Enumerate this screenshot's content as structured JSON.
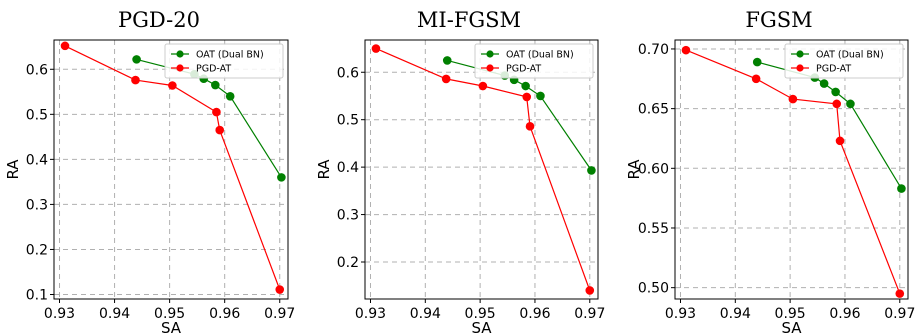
{
  "chart_data": [
    {
      "type": "line",
      "title": "PGD-20",
      "xlabel": "SA",
      "ylabel": "RA",
      "xlim": [
        0.929,
        0.9715
      ],
      "ylim": [
        0.09,
        0.665
      ],
      "xticks": [
        "0.93",
        "0.94",
        "0.95",
        "0.96",
        "0.97"
      ],
      "yticks": [
        "0.1",
        "0.2",
        "0.3",
        "0.4",
        "0.5",
        "0.6"
      ],
      "grid": true,
      "legend": "top-right",
      "series": [
        {
          "name": "OAT (Dual BN)",
          "color": "#008000",
          "x": [
            0.944,
            0.9545,
            0.9562,
            0.9583,
            0.961,
            0.9703
          ],
          "y": [
            0.622,
            0.589,
            0.579,
            0.565,
            0.54,
            0.36
          ]
        },
        {
          "name": "PGD-AT",
          "color": "#ff0000",
          "x": [
            0.931,
            0.9438,
            0.9505,
            0.9585,
            0.9591,
            0.97
          ],
          "y": [
            0.652,
            0.576,
            0.564,
            0.505,
            0.465,
            0.111
          ]
        }
      ]
    },
    {
      "type": "line",
      "title": "MI-FGSM",
      "xlabel": "SA",
      "ylabel": "RA",
      "xlim": [
        0.929,
        0.9715
      ],
      "ylim": [
        0.122,
        0.668
      ],
      "xticks": [
        "0.93",
        "0.94",
        "0.95",
        "0.96",
        "0.97"
      ],
      "yticks": [
        "0.2",
        "0.3",
        "0.4",
        "0.5",
        "0.6"
      ],
      "grid": true,
      "legend": "top-right",
      "series": [
        {
          "name": "OAT (Dual BN)",
          "color": "#008000",
          "x": [
            0.944,
            0.9545,
            0.9562,
            0.9583,
            0.961,
            0.9703
          ],
          "y": [
            0.625,
            0.593,
            0.584,
            0.571,
            0.55,
            0.393
          ]
        },
        {
          "name": "PGD-AT",
          "color": "#ff0000",
          "x": [
            0.931,
            0.9438,
            0.9505,
            0.9585,
            0.9591,
            0.97
          ],
          "y": [
            0.65,
            0.586,
            0.571,
            0.548,
            0.486,
            0.14
          ]
        }
      ]
    },
    {
      "type": "line",
      "title": "FGSM",
      "xlabel": "SA",
      "ylabel": "RA",
      "xlim": [
        0.929,
        0.9715
      ],
      "ylim": [
        0.4905,
        0.7075
      ],
      "xticks": [
        "0.93",
        "0.94",
        "0.95",
        "0.96",
        "0.97"
      ],
      "yticks": [
        "0.50",
        "0.55",
        "0.60",
        "0.65",
        "0.70"
      ],
      "grid": true,
      "legend": "top-right",
      "series": [
        {
          "name": "OAT (Dual BN)",
          "color": "#008000",
          "x": [
            0.944,
            0.9545,
            0.9562,
            0.9583,
            0.961,
            0.9703
          ],
          "y": [
            0.689,
            0.676,
            0.671,
            0.664,
            0.654,
            0.583
          ]
        },
        {
          "name": "PGD-AT",
          "color": "#ff0000",
          "x": [
            0.931,
            0.9438,
            0.9505,
            0.9585,
            0.9591,
            0.97
          ],
          "y": [
            0.699,
            0.675,
            0.658,
            0.654,
            0.623,
            0.495
          ]
        }
      ]
    }
  ]
}
